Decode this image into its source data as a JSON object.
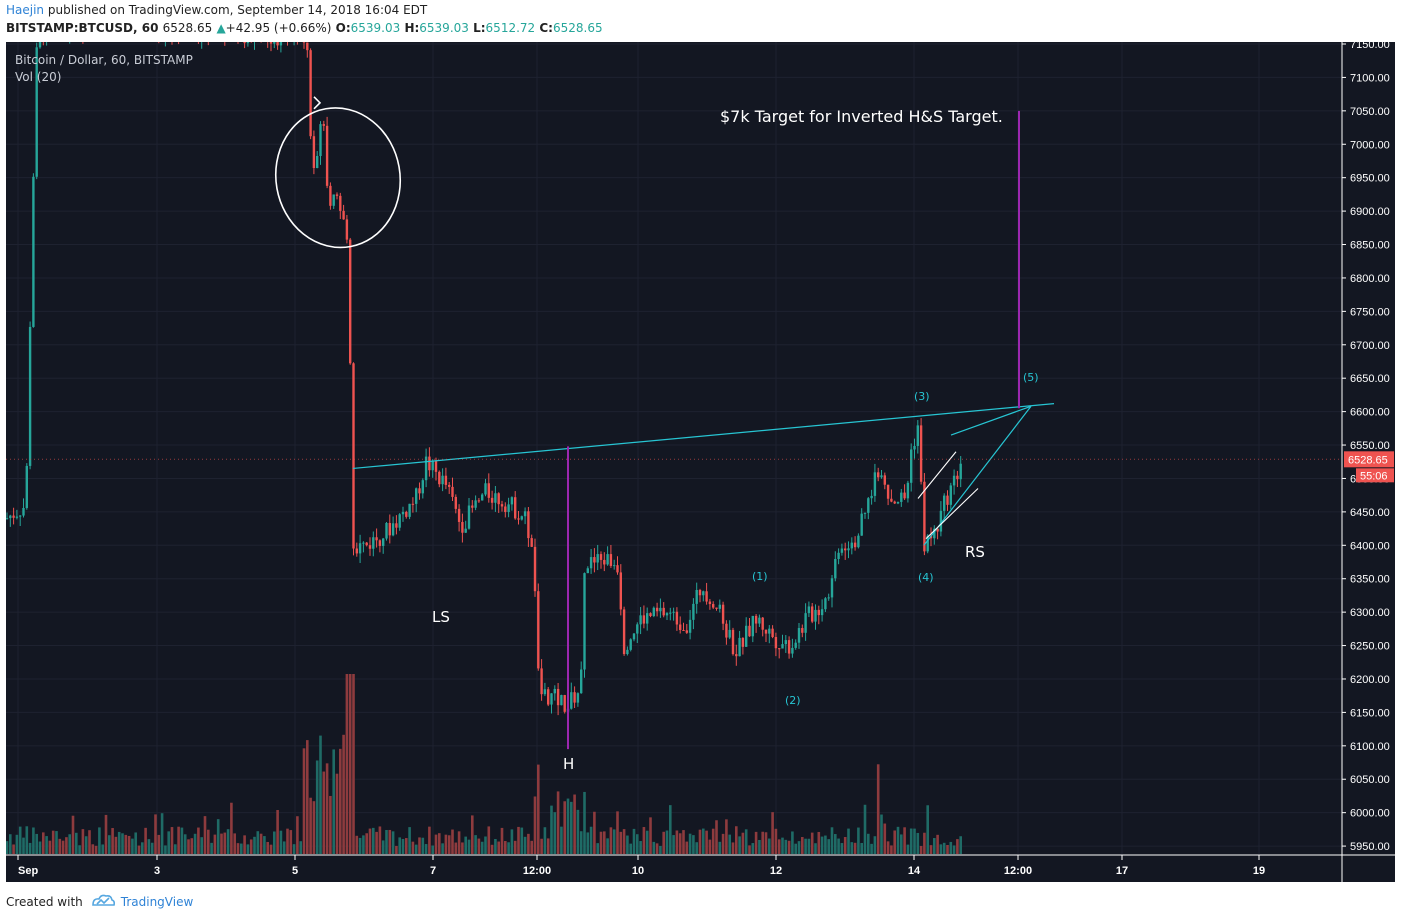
{
  "header": {
    "author": "Haejin",
    "published_text": " published on TradingView.com, September 14, 2018 16:04 EDT",
    "symbol": "BITSTAMP:BTCUSD, 60",
    "last": "6528.65",
    "change_arrow": "▲",
    "change": "+42.95 (+0.66%)",
    "o_label": "O:",
    "o": "6539.03",
    "h_label": "H:",
    "h": "6539.03",
    "l_label": "L:",
    "l": "6512.72",
    "c_label": "C:",
    "c": "6528.65"
  },
  "legend": {
    "title": "Bitcoin / Dollar, 60, BITSTAMP",
    "volume": "Vol (20)"
  },
  "price_axis": {
    "ticks": [
      "7150.00",
      "7100.00",
      "7050.00",
      "7000.00",
      "6950.00",
      "6900.00",
      "6850.00",
      "6800.00",
      "6750.00",
      "6700.00",
      "6650.00",
      "6600.00",
      "6550.00",
      "6500.00",
      "6450.00",
      "6400.00",
      "6350.00",
      "6300.00",
      "6250.00",
      "6200.00",
      "6150.00",
      "6100.00",
      "6050.00",
      "6000.00",
      "5950.00"
    ],
    "current_price": "6528.65",
    "countdown": "55:06"
  },
  "time_axis": {
    "ticks": [
      "Sep",
      "3",
      "5",
      "7",
      "12:00",
      "10",
      "12",
      "14",
      "12:00",
      "17",
      "19"
    ]
  },
  "annotations": {
    "target_text": "$7k Target for Inverted H&S Target.",
    "ls": "LS",
    "h": "H",
    "rs": "RS",
    "w1": "(1)",
    "w2": "(2)",
    "w3": "(3)",
    "w4": "(4)",
    "w5": "(5)"
  },
  "colors": {
    "background": "#131722",
    "up": "#26a69a",
    "down": "#ef5350",
    "neckline": "#27c5d3",
    "target_line": "#9c27b0",
    "wave_label": "#27c5d3"
  },
  "footer": {
    "created_with": "Created with",
    "brand": "TradingView"
  },
  "chart_data": {
    "type": "candlestick",
    "price_anchors": [
      {
        "label": "start",
        "price": 6440
      },
      {
        "label": "drop_high",
        "price": 7150
      },
      {
        "label": "circle_top",
        "price": 7040
      },
      {
        "label": "post_drop",
        "price": 6420
      },
      {
        "label": "LS",
        "price": 6520
      },
      {
        "label": "H",
        "price": 6110
      },
      {
        "label": "(1)",
        "price": 6310
      },
      {
        "label": "(2)",
        "price": 6220
      },
      {
        "label": "(3)",
        "price": 6580
      },
      {
        "label": "(4)",
        "price": 6400
      },
      {
        "label": "current",
        "price": 6528.65
      },
      {
        "label": "target",
        "price": 7050
      }
    ],
    "neckline": {
      "from_price": 6515,
      "to_price": 6612
    },
    "target_projection": {
      "from_price": 6600,
      "to_price": 7050
    },
    "ylim": [
      5940,
      7160
    ]
  }
}
